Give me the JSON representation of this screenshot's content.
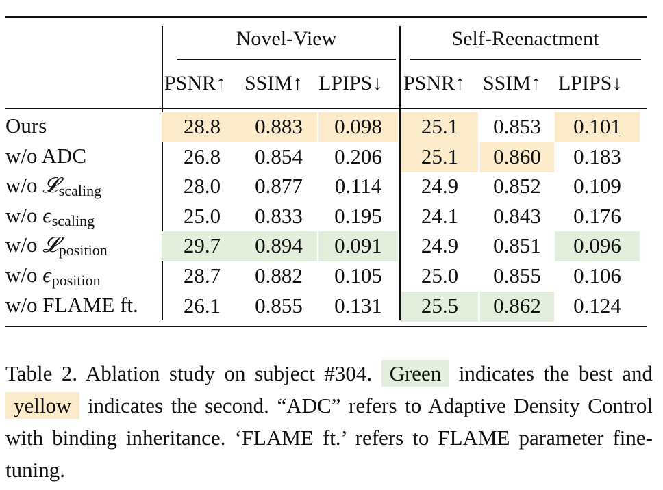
{
  "colors": {
    "best": "#e3efdc",
    "second": "#fcebcb",
    "rule": "#111111"
  },
  "table": {
    "groups": [
      "Novel-View",
      "Self-Reenactment"
    ],
    "metrics": [
      "PSNR↑",
      "SSIM↑",
      "LPIPS↓",
      "PSNR↑",
      "SSIM↑",
      "LPIPS↓"
    ],
    "rows": [
      {
        "label": "Ours",
        "values": [
          "28.8",
          "0.883",
          "0.098",
          "25.1",
          "0.853",
          "0.101"
        ],
        "highlight": [
          "second",
          "second",
          "second",
          "second",
          "",
          "second"
        ]
      },
      {
        "label": "w/o ADC",
        "values": [
          "26.8",
          "0.854",
          "0.206",
          "25.1",
          "0.860",
          "0.183"
        ],
        "highlight": [
          "",
          "",
          "",
          "second",
          "second",
          ""
        ]
      },
      {
        "label_prefix": "w/o ",
        "symbol": "𝓛",
        "subscript": "scaling",
        "values": [
          "28.0",
          "0.877",
          "0.114",
          "24.9",
          "0.852",
          "0.109"
        ],
        "highlight": [
          "",
          "",
          "",
          "",
          "",
          ""
        ]
      },
      {
        "label_prefix": "w/o ",
        "symbol": "ϵ",
        "subscript": "scaling",
        "values": [
          "25.0",
          "0.833",
          "0.195",
          "24.1",
          "0.843",
          "0.176"
        ],
        "highlight": [
          "",
          "",
          "",
          "",
          "",
          ""
        ]
      },
      {
        "label_prefix": "w/o ",
        "symbol": "𝓛",
        "subscript": "position",
        "values": [
          "29.7",
          "0.894",
          "0.091",
          "24.9",
          "0.851",
          "0.096"
        ],
        "highlight": [
          "best",
          "best",
          "best",
          "",
          "",
          "best"
        ]
      },
      {
        "label_prefix": "w/o ",
        "symbol": "ϵ",
        "subscript": "position",
        "values": [
          "28.7",
          "0.882",
          "0.105",
          "25.0",
          "0.855",
          "0.106"
        ],
        "highlight": [
          "",
          "",
          "",
          "",
          "",
          ""
        ]
      },
      {
        "label": "w/o FLAME ft.",
        "values": [
          "26.1",
          "0.855",
          "0.131",
          "25.5",
          "0.862",
          "0.124"
        ],
        "highlight": [
          "",
          "",
          "",
          "best",
          "best",
          ""
        ]
      }
    ]
  },
  "caption": {
    "part1": "Table 2.  Ablation study on subject #304.",
    "green_word": "Green",
    "part2": "indicates the best and",
    "yellow_word": "yellow",
    "part3": "indicates the second. “ADC” refers to Adaptive Density Control with binding inheritance. ‘FLAME ft.’ refers to FLAME parameter fine-tuning."
  }
}
